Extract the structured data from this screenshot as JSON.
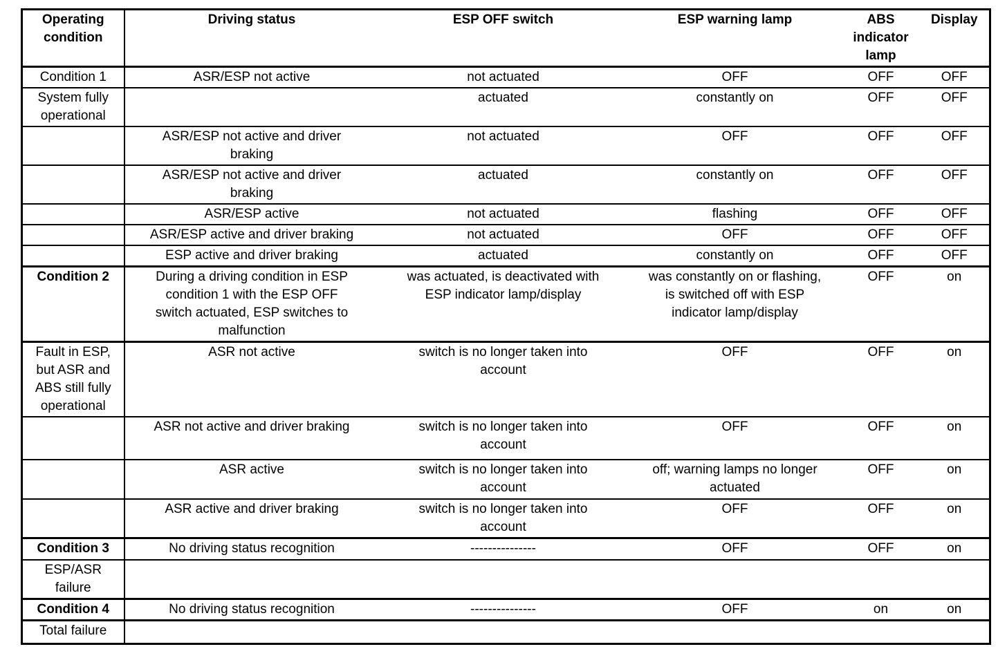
{
  "colors": {
    "background": "#ffffff",
    "text": "#000000",
    "border": "#000000"
  },
  "table": {
    "columns": [
      {
        "label": "Operating\ncondition"
      },
      {
        "label": "Driving status"
      },
      {
        "label": "ESP OFF switch"
      },
      {
        "label": "ESP warning lamp"
      },
      {
        "label": "ABS\nindicator\nlamp"
      },
      {
        "label": "Display"
      }
    ],
    "rows": [
      [
        "Condition 1",
        "ASR/ESP not active",
        "not actuated",
        "OFF",
        "OFF",
        "OFF"
      ],
      [
        "System fully\noperational",
        "",
        "actuated",
        "constantly on",
        "OFF",
        "OFF"
      ],
      [
        "",
        "ASR/ESP not active and driver\nbraking",
        "not actuated",
        "OFF",
        "OFF",
        "OFF"
      ],
      [
        "",
        "ASR/ESP not active and driver\nbraking",
        "actuated",
        "constantly on",
        "OFF",
        "OFF"
      ],
      [
        "",
        "ASR/ESP active",
        "not actuated",
        "flashing",
        "OFF",
        "OFF"
      ],
      [
        "",
        "ASR/ESP active and driver braking",
        "not actuated",
        "OFF",
        "OFF",
        "OFF"
      ],
      [
        "",
        "ESP active and driver braking",
        "actuated",
        "constantly on",
        "OFF",
        "OFF"
      ],
      [
        "Condition 2",
        "During a driving condition in ESP\ncondition 1 with the ESP OFF\nswitch actuated, ESP switches to\nmalfunction",
        "was actuated, is deactivated with\nESP indicator lamp/display",
        "was constantly on or flashing,\nis switched off with ESP\nindicator lamp/display",
        "OFF",
        "on"
      ],
      [
        "Fault in ESP,\nbut ASR and\nABS still fully\noperational",
        "ASR not active",
        "switch is no longer taken into\naccount",
        "OFF",
        "OFF",
        "on"
      ],
      [
        "",
        "ASR not active and driver braking",
        "switch is no longer taken into\naccount",
        "OFF",
        "OFF",
        "on"
      ],
      [
        "",
        "ASR active",
        "switch is no longer taken into\naccount",
        "off; warning lamps no longer\nactuated",
        "OFF",
        "on"
      ],
      [
        "",
        "ASR active and driver braking",
        "switch is no longer taken into\naccount",
        "OFF",
        "OFF",
        "on"
      ],
      [
        "Condition 3",
        "No driving status recognition",
        "---------------",
        "OFF",
        "OFF",
        "on"
      ],
      [
        "ESP/ASR\nfailure",
        "",
        "",
        "",
        "",
        ""
      ],
      [
        "Condition 4",
        "No driving status recognition",
        "---------------",
        "OFF",
        "on",
        "on"
      ],
      [
        "Total failure",
        "",
        "",
        "",
        "",
        ""
      ]
    ]
  }
}
